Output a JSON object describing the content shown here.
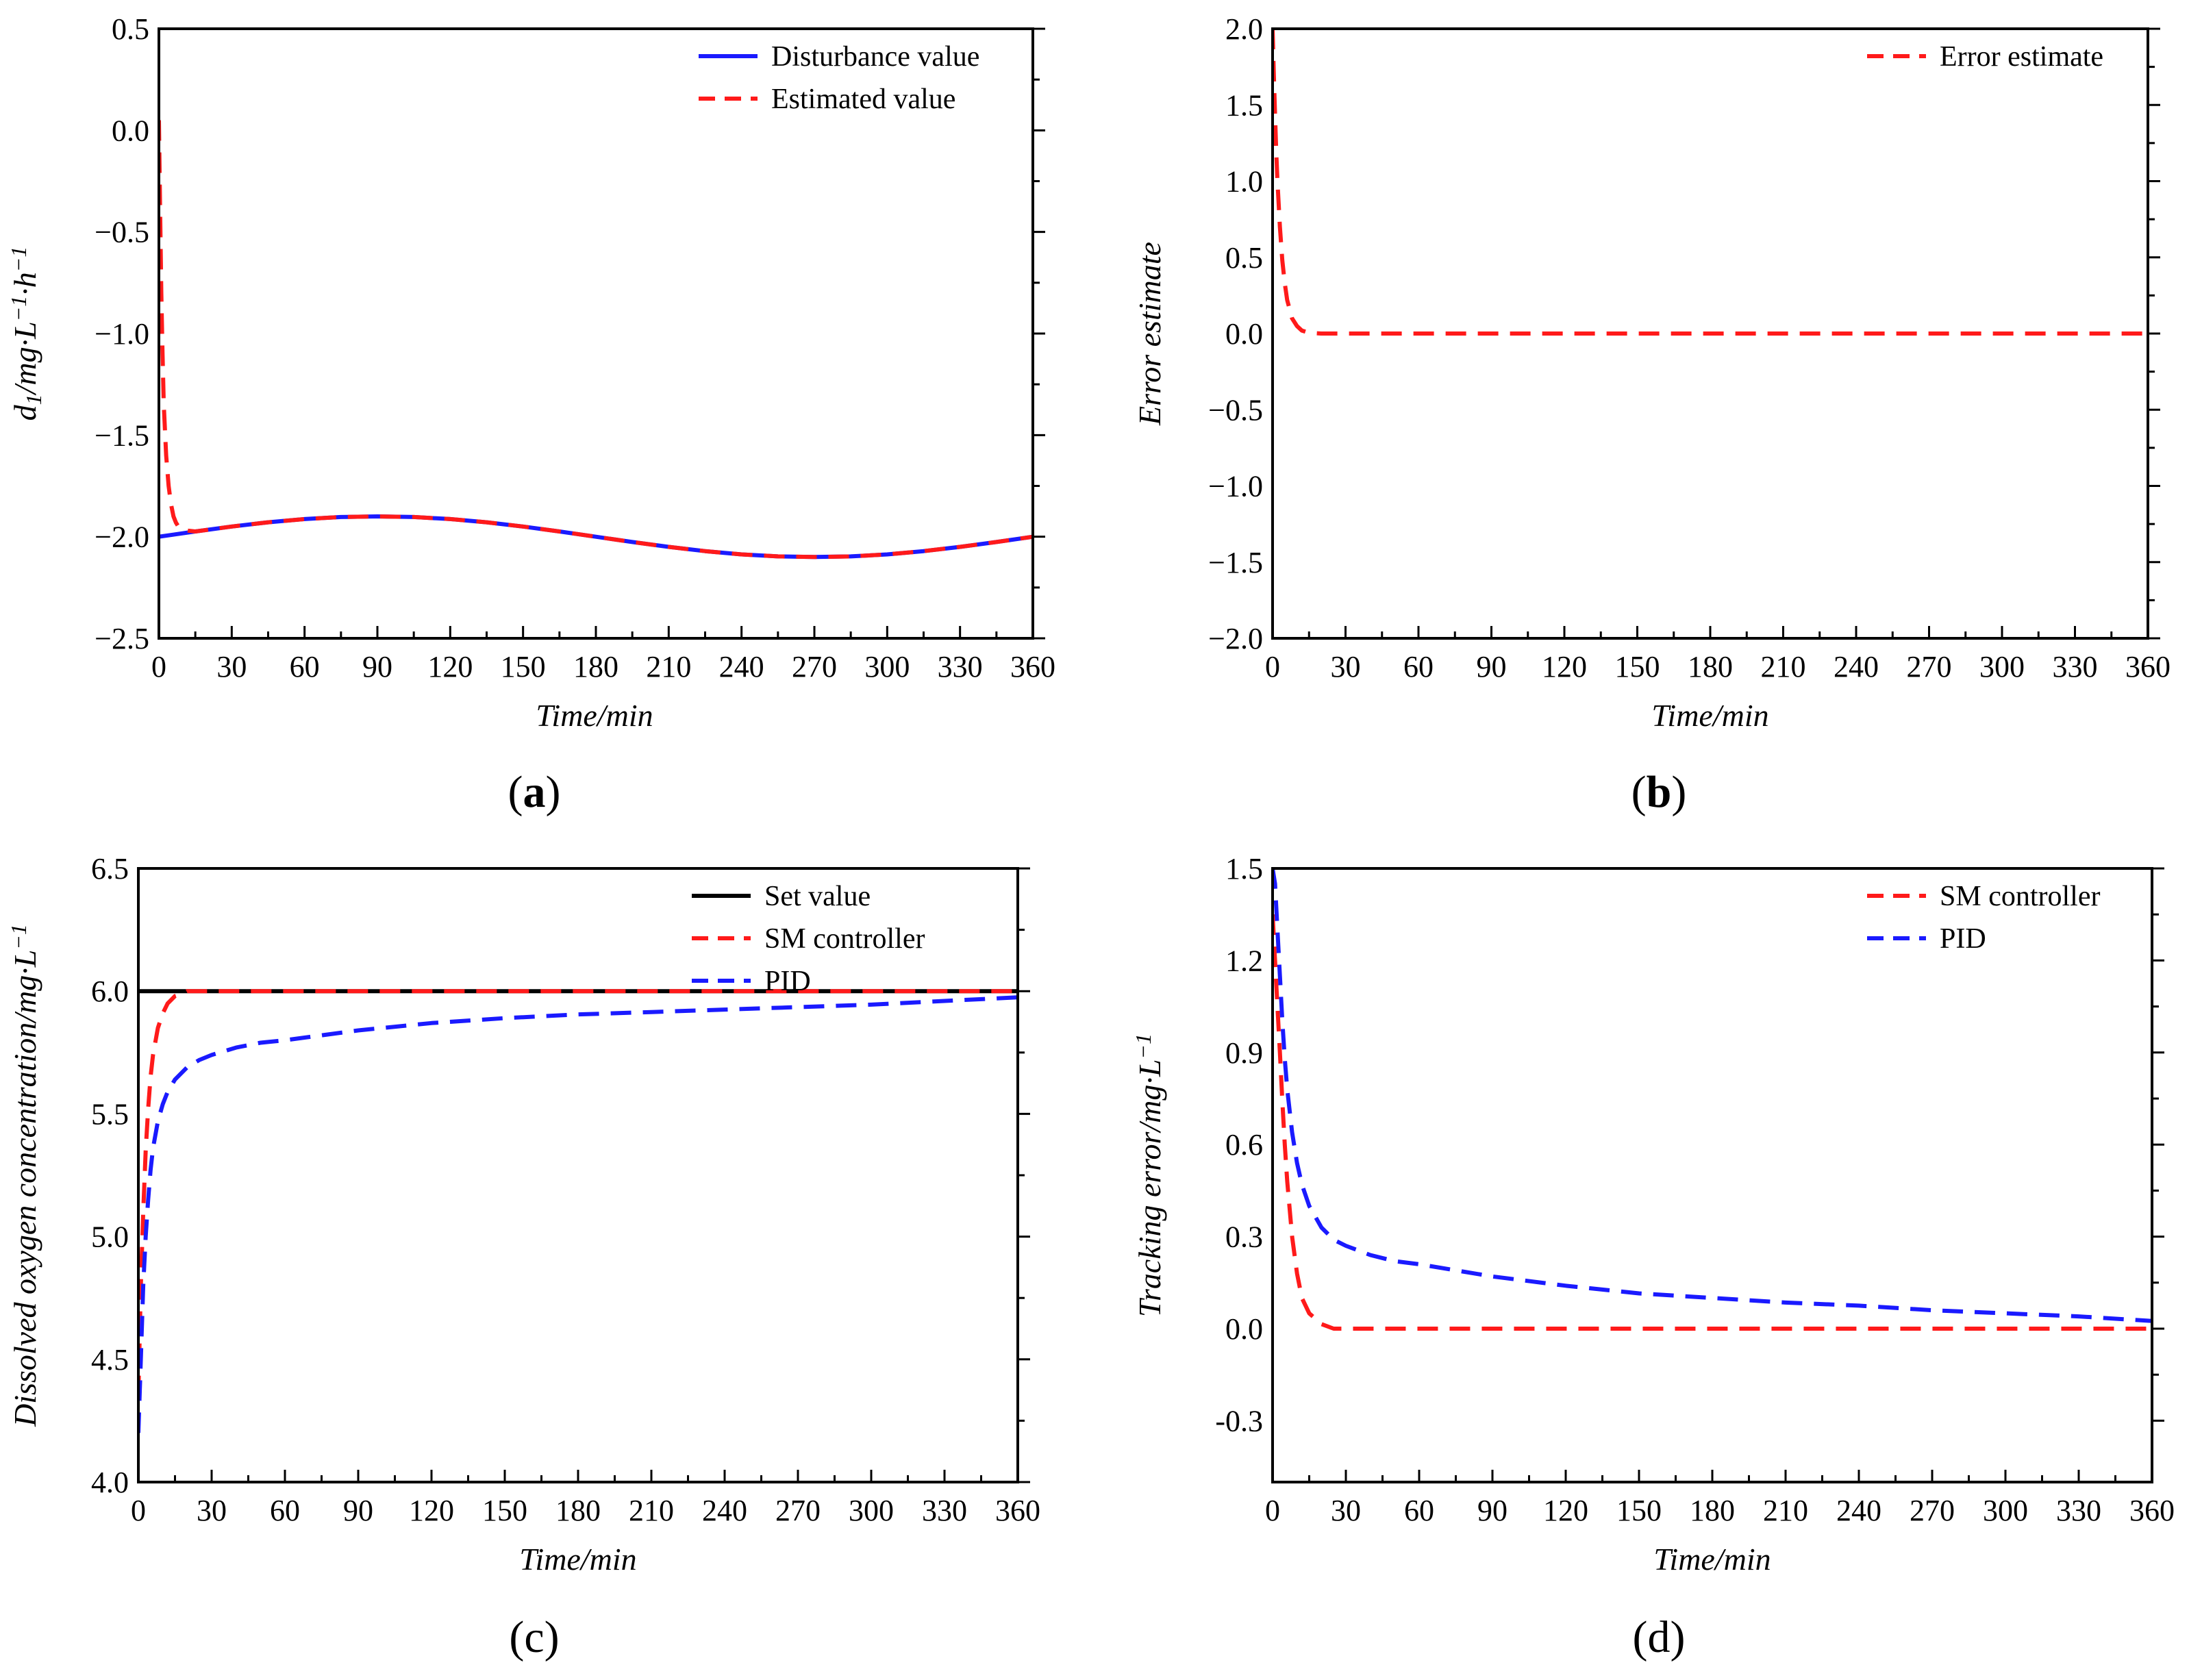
{
  "figure": {
    "colors": {
      "blue": "#1a1aff",
      "red": "#ff1a1a",
      "black": "#000000"
    }
  },
  "chart_data": [
    {
      "id": "a",
      "type": "line",
      "panel_label": "(a)",
      "xlabel": "Time/min",
      "ylabel": "d1/mg·L−1·h−1",
      "ylabel_parts": [
        "d",
        "1",
        "/mg·L",
        "−1",
        "·h",
        "−1"
      ],
      "xlim": [
        0,
        360
      ],
      "ylim": [
        -2.5,
        0.5
      ],
      "xticks": [
        0,
        30,
        60,
        90,
        120,
        150,
        180,
        210,
        240,
        270,
        300,
        330,
        360
      ],
      "xtick_labels": [
        "0",
        "30",
        "60",
        "90",
        "120",
        "150",
        "180",
        "210",
        "240",
        "270",
        "300",
        "330",
        "360"
      ],
      "yticks": [
        -2.5,
        -2.0,
        -1.5,
        -1.0,
        -0.5,
        0.0,
        0.5
      ],
      "ytick_labels": [
        "−2.5",
        "−2.0",
        "−1.5",
        "−1.0",
        "−0.5",
        "0.0",
        "0.5"
      ],
      "legend_position": "top-right",
      "series": [
        {
          "name": "Disturbance value",
          "color": "#1a1aff",
          "dash": "solid",
          "x": [
            0,
            15,
            30,
            45,
            60,
            75,
            90,
            105,
            120,
            135,
            150,
            165,
            180,
            195,
            210,
            225,
            240,
            255,
            270,
            285,
            300,
            315,
            330,
            345,
            360
          ],
          "y": [
            -2.0,
            -1.974,
            -1.95,
            -1.929,
            -1.913,
            -1.903,
            -1.9,
            -1.903,
            -1.913,
            -1.929,
            -1.95,
            -1.974,
            -2.0,
            -2.026,
            -2.05,
            -2.071,
            -2.087,
            -2.097,
            -2.1,
            -2.097,
            -2.087,
            -2.071,
            -2.05,
            -2.026,
            -2.0
          ]
        },
        {
          "name": "Estimated value",
          "color": "#ff1a1a",
          "dash": "dashed",
          "x": [
            0,
            0.5,
            1,
            1.5,
            2,
            3,
            4,
            5,
            6,
            7,
            8,
            10,
            12,
            15,
            30,
            45,
            60,
            75,
            90,
            105,
            120,
            135,
            150,
            165,
            180,
            195,
            210,
            225,
            240,
            255,
            270,
            285,
            300,
            315,
            330,
            345,
            360
          ],
          "y": [
            0.05,
            -0.4,
            -0.8,
            -1.1,
            -1.35,
            -1.6,
            -1.75,
            -1.84,
            -1.9,
            -1.93,
            -1.95,
            -1.965,
            -1.97,
            -1.974,
            -1.95,
            -1.929,
            -1.913,
            -1.903,
            -1.9,
            -1.903,
            -1.913,
            -1.929,
            -1.95,
            -1.974,
            -2.0,
            -2.026,
            -2.05,
            -2.071,
            -2.087,
            -2.097,
            -2.1,
            -2.097,
            -2.087,
            -2.071,
            -2.05,
            -2.026,
            -2.0
          ]
        }
      ]
    },
    {
      "id": "b",
      "type": "line",
      "panel_label": "(b)",
      "xlabel": "Time/min",
      "ylabel": "Error estimate",
      "xlim": [
        0,
        360
      ],
      "ylim": [
        -2.0,
        2.0
      ],
      "xticks": [
        0,
        30,
        60,
        90,
        120,
        150,
        180,
        210,
        240,
        270,
        300,
        330,
        360
      ],
      "xtick_labels": [
        "0",
        "30",
        "60",
        "90",
        "120",
        "150",
        "180",
        "210",
        "240",
        "270",
        "300",
        "330",
        "360"
      ],
      "yticks": [
        -2.0,
        -1.5,
        -1.0,
        -0.5,
        0.0,
        0.5,
        1.0,
        1.5,
        2.0
      ],
      "ytick_labels": [
        "−2.0",
        "−1.5",
        "−1.0",
        "−0.5",
        "0.0",
        "0.5",
        "1.0",
        "1.5",
        "2.0"
      ],
      "legend_position": "top-right",
      "series": [
        {
          "name": "Error estimate",
          "color": "#ff1a1a",
          "dash": "dashed",
          "x": [
            0,
            0.5,
            1,
            1.5,
            2,
            3,
            4,
            5,
            6,
            8,
            10,
            12,
            15,
            20,
            30,
            60,
            120,
            180,
            240,
            300,
            360
          ],
          "y": [
            2.0,
            1.7,
            1.45,
            1.2,
            1.0,
            0.7,
            0.48,
            0.33,
            0.22,
            0.1,
            0.05,
            0.02,
            0.005,
            0.0,
            0.0,
            0.0,
            0.0,
            0.0,
            0.0,
            0.0,
            0.0
          ]
        }
      ]
    },
    {
      "id": "c",
      "type": "line",
      "panel_label": "(c)",
      "xlabel": "Time/min",
      "ylabel": "Dissolved oxygen concentration/mg·L−1",
      "ylabel_parts": [
        "Dissolved oxygen concentration/mg·L",
        "−1"
      ],
      "xlim": [
        0,
        360
      ],
      "ylim": [
        4.0,
        6.5
      ],
      "xticks": [
        0,
        30,
        60,
        90,
        120,
        150,
        180,
        210,
        240,
        270,
        300,
        330,
        360
      ],
      "xtick_labels": [
        "0",
        "30",
        "60",
        "90",
        "120",
        "150",
        "180",
        "210",
        "240",
        "270",
        "300",
        "330",
        "360"
      ],
      "yticks": [
        4.0,
        4.5,
        5.0,
        5.5,
        6.0,
        6.5
      ],
      "ytick_labels": [
        "4.0",
        "4.5",
        "5.0",
        "5.5",
        "6.0",
        "6.5"
      ],
      "legend_position": "top-right",
      "series": [
        {
          "name": "Set value",
          "color": "#000000",
          "dash": "solid",
          "x": [
            0,
            360
          ],
          "y": [
            6.0,
            6.0
          ]
        },
        {
          "name": "SM controller",
          "color": "#ff1a1a",
          "dash": "dashed",
          "x": [
            0,
            1,
            2,
            3,
            4,
            5,
            6,
            8,
            10,
            12,
            15,
            18,
            20,
            25,
            30,
            60,
            120,
            180,
            240,
            300,
            360
          ],
          "y": [
            4.35,
            4.8,
            5.1,
            5.35,
            5.52,
            5.65,
            5.74,
            5.85,
            5.91,
            5.95,
            5.98,
            5.99,
            6.0,
            6.0,
            6.0,
            6.0,
            6.0,
            6.0,
            6.0,
            6.0,
            6.0
          ]
        },
        {
          "name": "PID",
          "color": "#1a1aff",
          "dash": "dashed",
          "x": [
            0,
            1,
            2,
            3,
            4,
            5,
            6,
            8,
            10,
            12,
            15,
            20,
            25,
            30,
            40,
            50,
            60,
            90,
            120,
            150,
            180,
            210,
            240,
            270,
            300,
            330,
            360
          ],
          "y": [
            4.2,
            4.5,
            4.8,
            5.0,
            5.15,
            5.27,
            5.36,
            5.47,
            5.54,
            5.59,
            5.64,
            5.69,
            5.72,
            5.74,
            5.77,
            5.79,
            5.8,
            5.84,
            5.87,
            5.89,
            5.905,
            5.915,
            5.925,
            5.935,
            5.945,
            5.96,
            5.975
          ]
        }
      ]
    },
    {
      "id": "d",
      "type": "line",
      "panel_label": "(d)",
      "xlabel": "Time/min",
      "ylabel": "Tracking error/mg·L−1",
      "ylabel_parts": [
        "Tracking error/mg·L",
        "−1"
      ],
      "xlim": [
        0,
        360
      ],
      "ylim": [
        -0.5,
        1.5
      ],
      "xticks": [
        0,
        30,
        60,
        90,
        120,
        150,
        180,
        210,
        240,
        270,
        300,
        330,
        360
      ],
      "xtick_labels": [
        "0",
        "30",
        "60",
        "90",
        "120",
        "150",
        "180",
        "210",
        "240",
        "270",
        "300",
        "330",
        "360"
      ],
      "yticks": [
        -0.3,
        0.0,
        0.3,
        0.6,
        0.9,
        1.2,
        1.5
      ],
      "ytick_labels": [
        "-0.3",
        "0.0",
        "0.3",
        "0.6",
        "0.9",
        "1.2",
        "1.5"
      ],
      "legend_position": "top-right",
      "series": [
        {
          "name": "SM controller",
          "color": "#ff1a1a",
          "dash": "dashed",
          "x": [
            0,
            1,
            2,
            3,
            4,
            5,
            6,
            8,
            10,
            12,
            15,
            20,
            25,
            30,
            60,
            120,
            180,
            240,
            300,
            360
          ],
          "y": [
            1.35,
            1.2,
            1.05,
            0.9,
            0.74,
            0.6,
            0.48,
            0.3,
            0.18,
            0.1,
            0.05,
            0.015,
            0.0,
            0.0,
            0.0,
            0.0,
            0.0,
            0.0,
            0.0,
            0.0
          ]
        },
        {
          "name": "PID",
          "color": "#1a1aff",
          "dash": "dashed",
          "x": [
            0,
            1,
            2,
            3,
            4,
            5,
            6,
            8,
            10,
            12,
            15,
            20,
            25,
            30,
            40,
            50,
            60,
            90,
            120,
            150,
            180,
            210,
            240,
            270,
            300,
            330,
            360
          ],
          "y": [
            1.5,
            1.45,
            1.3,
            1.15,
            1.0,
            0.88,
            0.78,
            0.64,
            0.54,
            0.47,
            0.4,
            0.33,
            0.29,
            0.27,
            0.24,
            0.22,
            0.21,
            0.17,
            0.14,
            0.115,
            0.1,
            0.085,
            0.075,
            0.06,
            0.05,
            0.04,
            0.025
          ]
        }
      ]
    }
  ]
}
